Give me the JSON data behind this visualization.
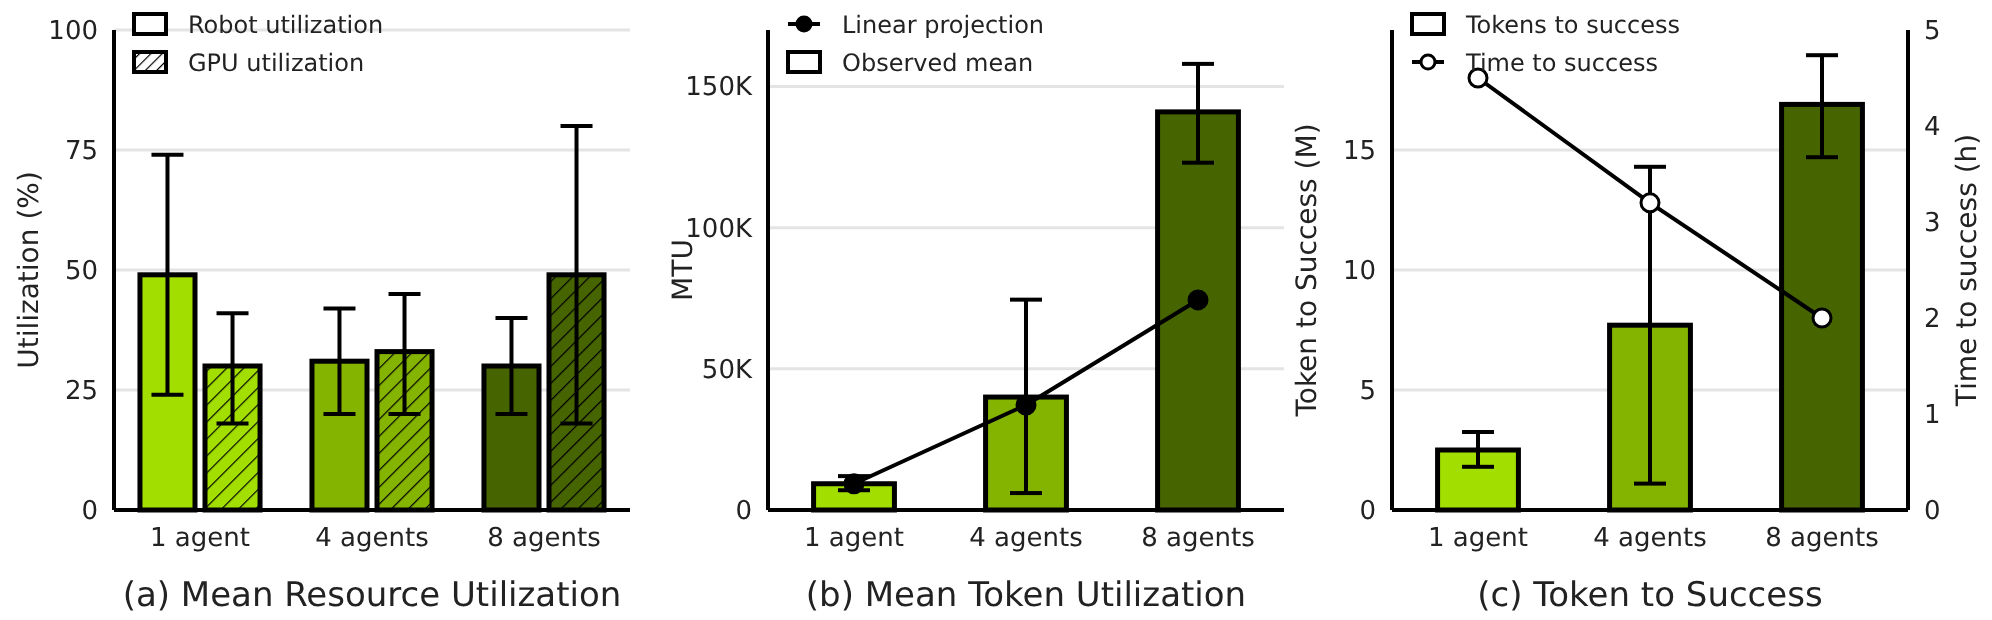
{
  "chart_data": [
    {
      "type": "bar",
      "title": "(a) Mean Resource Utilization",
      "ylabel": "Utilization (%)",
      "categories": [
        "1 agent",
        "4 agents",
        "8 agents"
      ],
      "series": [
        {
          "name": "Robot utilization",
          "colors": [
            "#a2df00",
            "#84b300",
            "#466500"
          ],
          "values": [
            49,
            31,
            30
          ],
          "errors": [
            [
              24,
              74
            ],
            [
              20,
              42
            ],
            [
              20,
              40
            ]
          ]
        },
        {
          "name": "GPU utilization",
          "colors": [
            "#a2df00",
            "#84b300",
            "#466500"
          ],
          "values": [
            30,
            33,
            49
          ],
          "errors": [
            [
              18,
              41
            ],
            [
              20,
              45
            ],
            [
              18,
              80
            ]
          ]
        }
      ],
      "ylim": [
        0,
        100
      ],
      "yticks": [
        0,
        25,
        50,
        75,
        100
      ],
      "grid": "y",
      "legend": "top left"
    },
    {
      "type": "bar",
      "title": "(b) Mean Token Utilization",
      "ylabel": "MTU",
      "categories": [
        "1 agent",
        "4 agents",
        "8 agents"
      ],
      "series": [
        {
          "name": "Linear projection",
          "type": "line",
          "color": "#000000",
          "marker": "circle",
          "values": [
            9300,
            37200,
            74400
          ]
        },
        {
          "name": "Observed mean",
          "colors": [
            "#a2df00",
            "#84b300",
            "#466500"
          ],
          "values": [
            9300,
            40000,
            141000
          ],
          "errors": [
            [
              7000,
              12000
            ],
            [
              6000,
              74500
            ],
            [
              123000,
              158000
            ]
          ]
        }
      ],
      "ylim": [
        0,
        170000
      ],
      "yticks": [
        0,
        {
          "value": 50000,
          "label": "50K"
        },
        {
          "value": 100000,
          "label": "100K"
        },
        {
          "value": 150000,
          "label": "150K"
        }
      ],
      "grid": "y",
      "legend": "top left"
    },
    {
      "type": "bar",
      "title": "(c) Token to Success",
      "ylabel": "Token to Success (M)",
      "y2label": "Time to success (h)",
      "categories": [
        "1 agent",
        "4 agents",
        "8 agents"
      ],
      "series": [
        {
          "name": "Tokens to success",
          "colors": [
            "#a2df00",
            "#84b300",
            "#466500"
          ],
          "values": [
            2.5,
            7.7,
            16.9
          ],
          "errors": [
            [
              1.8,
              3.25
            ],
            [
              1.1,
              14.3
            ],
            [
              14.7,
              18.95
            ]
          ]
        },
        {
          "name": "Time to success",
          "type": "line",
          "axis": "y2",
          "color": "#000000",
          "marker": "circle",
          "values": [
            4.5,
            3.2,
            2.0
          ]
        }
      ],
      "ylim": [
        0,
        20
      ],
      "yticks": [
        0,
        5,
        10,
        15
      ],
      "y2lim": [
        0,
        5
      ],
      "y2ticks": [
        0,
        1,
        2,
        3,
        4,
        5
      ],
      "grid": "y",
      "legend": "top left"
    }
  ]
}
